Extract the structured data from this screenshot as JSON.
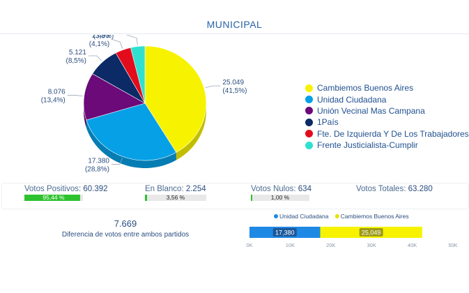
{
  "page": {
    "title": "MUNICIPAL"
  },
  "chart_data": [
    {
      "type": "pie",
      "slices": [
        {
          "name": "Cambiemos Buenos Aires",
          "value": 25049,
          "label_value": "25.049",
          "label_pct": "(41,5%)",
          "color": "#f7f300"
        },
        {
          "name": "Unidad Ciudadana",
          "value": 17380,
          "label_value": "17.380",
          "label_pct": "(28,8%)",
          "color": "#06a0e6"
        },
        {
          "name": "Unión Vecinal Mas Campana",
          "value": 8076,
          "label_value": "8.076",
          "label_pct": "(13,4%)",
          "color": "#6c0a7a"
        },
        {
          "name": "1País",
          "value": 5121,
          "label_value": "5.121",
          "label_pct": "(8,5%)",
          "color": "#0b2a66"
        },
        {
          "name": "Fte. De Izquierda Y De Los Trabajadores",
          "value": 2493,
          "label_value": "2.493",
          "label_pct": "(4,1%)",
          "color": "#e30c1c"
        },
        {
          "name": "Frente Justicialista-Cumplir",
          "value": 2273,
          "label_value": "2.273",
          "label_pct": "(3,8%)",
          "color": "#2fe0d0"
        }
      ],
      "legend_position": "right"
    },
    {
      "type": "bar",
      "orientation": "horizontal",
      "stacked": true,
      "legend": [
        "Unidad Ciudadana",
        "Cambiemos Buenos Aires"
      ],
      "series": [
        {
          "name": "Unidad Ciudadana",
          "values": [
            17380
          ],
          "label": "17,380",
          "color": "#1e88e5"
        },
        {
          "name": "Cambiemos Buenos Aires",
          "values": [
            25049
          ],
          "label": "25,049",
          "color": "#f7f300"
        }
      ],
      "xlim": [
        0,
        50000
      ],
      "xticks": [
        "0K",
        "10K",
        "20K",
        "30K",
        "40K",
        "50K"
      ]
    }
  ],
  "stats": {
    "positivos": {
      "label": "Votos Positivos:",
      "value": "60.392",
      "bar_text": "95,44 %",
      "fraction": 0.9544
    },
    "blanco": {
      "label": "En Blanco:",
      "value": "2.254",
      "bar_text": "3,56 %",
      "fraction": 0.0356
    },
    "nulos": {
      "label": "Votos Nulos:",
      "value": "634",
      "bar_text": "1,00 %",
      "fraction": 0.01
    },
    "totales": {
      "label": "Votos Totales:",
      "value": "63.280"
    }
  },
  "difference": {
    "value": "7.669",
    "label": "Diferencia de votos entre ambos partidos"
  }
}
